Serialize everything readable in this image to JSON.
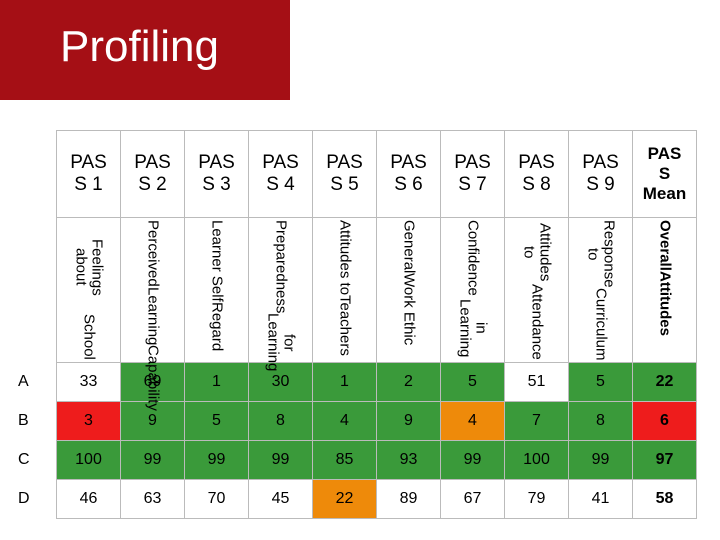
{
  "title": "Profiling",
  "table": {
    "headers": [
      [
        "PAS",
        "S 1"
      ],
      [
        "PAS",
        "S 2"
      ],
      [
        "PAS",
        "S 3"
      ],
      [
        "PAS",
        "S 4"
      ],
      [
        "PAS",
        "S 5"
      ],
      [
        "PAS",
        "S 6"
      ],
      [
        "PAS",
        "S 7"
      ],
      [
        "PAS",
        "S 8"
      ],
      [
        "PAS",
        "S 9"
      ],
      [
        "PAS",
        "S",
        "Mean"
      ]
    ],
    "subheaders": [
      [
        "Feelings about",
        "School"
      ],
      [
        "Perceived",
        "Learning",
        "Capability"
      ],
      [
        "Learner Self",
        "Regard"
      ],
      [
        "Preparedness",
        "for Learning"
      ],
      [
        "Attitudes to",
        "Teachers"
      ],
      [
        "General",
        "Work Ethic"
      ],
      [
        "Confidence",
        "in Learning"
      ],
      [
        "Attitudes to",
        "Attendance"
      ],
      [
        "Response to",
        "Curriculum"
      ],
      [
        "Overall",
        "Attitudes"
      ]
    ],
    "row_labels": [
      "A",
      "B",
      "C",
      "D"
    ],
    "rows": [
      [
        33,
        69,
        1,
        30,
        1,
        2,
        5,
        51,
        5,
        22
      ],
      [
        3,
        9,
        5,
        8,
        4,
        9,
        4,
        7,
        8,
        6
      ],
      [
        100,
        99,
        99,
        99,
        85,
        93,
        99,
        100,
        99,
        97
      ],
      [
        46,
        63,
        70,
        45,
        22,
        89,
        67,
        79,
        41,
        58
      ]
    ],
    "cell_colors": [
      [
        "#ffffff",
        "#3a9a3a",
        "#3a9a3a",
        "#3a9a3a",
        "#3a9a3a",
        "#3a9a3a",
        "#3a9a3a",
        "#ffffff",
        "#3a9a3a",
        "#3a9a3a"
      ],
      [
        "#ee1c1c",
        "#3a9a3a",
        "#3a9a3a",
        "#3a9a3a",
        "#3a9a3a",
        "#3a9a3a",
        "#ee8a0a",
        "#3a9a3a",
        "#3a9a3a",
        "#ee1c1c"
      ],
      [
        "#3a9a3a",
        "#3a9a3a",
        "#3a9a3a",
        "#3a9a3a",
        "#3a9a3a",
        "#3a9a3a",
        "#3a9a3a",
        "#3a9a3a",
        "#3a9a3a",
        "#3a9a3a"
      ],
      [
        "#ffffff",
        "#ffffff",
        "#ffffff",
        "#ffffff",
        "#ee8a0a",
        "#ffffff",
        "#ffffff",
        "#ffffff",
        "#ffffff",
        "#ffffff"
      ]
    ]
  }
}
